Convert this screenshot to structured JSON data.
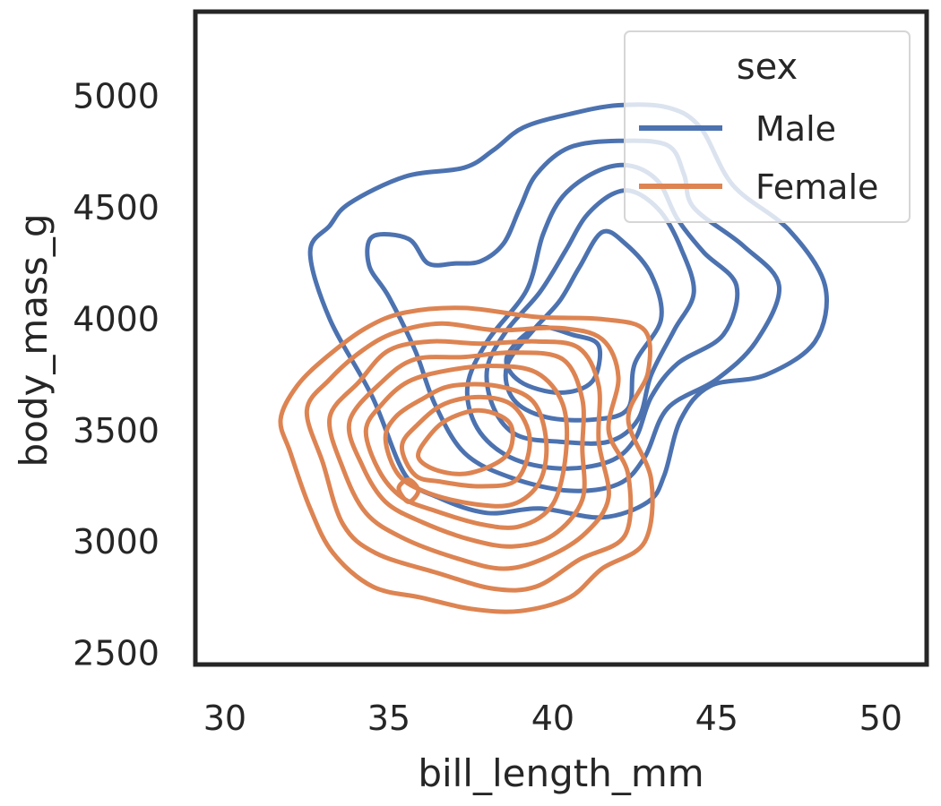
{
  "chart_data": {
    "type": "kde-contour",
    "title": "",
    "xlabel": "bill_length_mm",
    "ylabel": "body_mass_g",
    "xlim": [
      29.1,
      51.4
    ],
    "ylim": [
      2450,
      5380
    ],
    "x_ticks": [
      30,
      35,
      40,
      45,
      50
    ],
    "y_ticks": [
      2500,
      3000,
      3500,
      4000,
      4500,
      5000
    ],
    "grid": false,
    "legend": {
      "title": "sex",
      "placement": "top-right",
      "entries": [
        {
          "label": "Male",
          "color": "#4c72b0"
        },
        {
          "label": "Female",
          "color": "#dd8452"
        }
      ]
    },
    "series": [
      {
        "name": "Male",
        "color": "#4c72b0",
        "levels": [
          [
            [
              33.2,
              4420
            ],
            [
              33.8,
              4520
            ],
            [
              35.5,
              4640
            ],
            [
              37.3,
              4680
            ],
            [
              38.2,
              4760
            ],
            [
              39.1,
              4860
            ],
            [
              40.5,
              4920
            ],
            [
              42.0,
              4960
            ],
            [
              43.5,
              4950
            ],
            [
              44.5,
              4860
            ],
            [
              45.5,
              4600
            ],
            [
              47.2,
              4400
            ],
            [
              48.3,
              4150
            ],
            [
              48.0,
              3900
            ],
            [
              46.5,
              3750
            ],
            [
              44.8,
              3700
            ],
            [
              43.9,
              3550
            ],
            [
              43.4,
              3300
            ],
            [
              42.9,
              3180
            ],
            [
              41.5,
              3110
            ],
            [
              39.6,
              3150
            ],
            [
              38.0,
              3130
            ],
            [
              36.5,
              3200
            ],
            [
              35.5,
              3300
            ],
            [
              34.5,
              3650
            ],
            [
              33.2,
              4000
            ],
            [
              32.6,
              4300
            ]
          ],
          [
            [
              34.5,
              4370
            ],
            [
              35.6,
              4360
            ],
            [
              36.2,
              4250
            ],
            [
              37.0,
              4250
            ],
            [
              37.8,
              4260
            ],
            [
              38.5,
              4340
            ],
            [
              39.0,
              4500
            ],
            [
              39.5,
              4650
            ],
            [
              40.5,
              4770
            ],
            [
              42.0,
              4800
            ],
            [
              43.5,
              4780
            ],
            [
              44.0,
              4650
            ],
            [
              44.3,
              4500
            ],
            [
              45.8,
              4330
            ],
            [
              46.9,
              4150
            ],
            [
              46.2,
              3900
            ],
            [
              45.0,
              3730
            ],
            [
              43.5,
              3600
            ],
            [
              42.8,
              3380
            ],
            [
              42.0,
              3260
            ],
            [
              40.5,
              3230
            ],
            [
              38.7,
              3290
            ],
            [
              37.3,
              3400
            ],
            [
              36.4,
              3620
            ],
            [
              35.8,
              3860
            ],
            [
              35.0,
              4100
            ],
            [
              34.4,
              4240
            ]
          ],
          [
            [
              39.7,
              4380
            ],
            [
              40.3,
              4550
            ],
            [
              41.3,
              4660
            ],
            [
              42.3,
              4690
            ],
            [
              43.2,
              4620
            ],
            [
              43.8,
              4450
            ],
            [
              44.6,
              4300
            ],
            [
              45.6,
              4150
            ],
            [
              45.2,
              3930
            ],
            [
              43.8,
              3800
            ],
            [
              43.0,
              3650
            ],
            [
              42.5,
              3460
            ],
            [
              41.7,
              3360
            ],
            [
              40.2,
              3330
            ],
            [
              38.7,
              3380
            ],
            [
              37.7,
              3510
            ],
            [
              37.4,
              3700
            ],
            [
              38.0,
              3900
            ],
            [
              39.2,
              4130
            ]
          ],
          [
            [
              40.4,
              4310
            ],
            [
              41.0,
              4460
            ],
            [
              41.8,
              4560
            ],
            [
              42.5,
              4570
            ],
            [
              43.3,
              4480
            ],
            [
              43.9,
              4320
            ],
            [
              44.3,
              4120
            ],
            [
              43.7,
              3950
            ],
            [
              43.0,
              3750
            ],
            [
              42.6,
              3550
            ],
            [
              41.7,
              3450
            ],
            [
              40.2,
              3450
            ],
            [
              38.9,
              3480
            ],
            [
              38.2,
              3600
            ],
            [
              38.0,
              3780
            ],
            [
              38.6,
              3950
            ],
            [
              39.6,
              4120
            ]
          ],
          [
            [
              40.8,
              4230
            ],
            [
              41.5,
              4390
            ],
            [
              42.2,
              4340
            ],
            [
              43.0,
              4200
            ],
            [
              43.3,
              4000
            ],
            [
              42.5,
              3800
            ],
            [
              42.3,
              3600
            ],
            [
              41.3,
              3550
            ],
            [
              39.8,
              3560
            ],
            [
              38.8,
              3640
            ],
            [
              38.6,
              3790
            ],
            [
              39.4,
              3950
            ],
            [
              40.2,
              4080
            ]
          ],
          [
            [
              39.5,
              3960
            ],
            [
              40.6,
              3930
            ],
            [
              41.4,
              3880
            ],
            [
              41.2,
              3720
            ],
            [
              40.2,
              3670
            ],
            [
              39.0,
              3720
            ],
            [
              38.6,
              3830
            ]
          ]
        ]
      },
      {
        "name": "Female",
        "color": "#dd8452",
        "levels": [
          [
            [
              31.7,
              3550
            ],
            [
              32.0,
              3400
            ],
            [
              32.6,
              3150
            ],
            [
              33.3,
              2950
            ],
            [
              34.5,
              2800
            ],
            [
              36.0,
              2750
            ],
            [
              37.5,
              2700
            ],
            [
              39.0,
              2690
            ],
            [
              40.5,
              2750
            ],
            [
              41.5,
              2880
            ],
            [
              42.8,
              3000
            ],
            [
              43.0,
              3280
            ],
            [
              42.3,
              3550
            ],
            [
              42.9,
              3760
            ],
            [
              42.8,
              3950
            ],
            [
              41.5,
              4000
            ],
            [
              39.5,
              4010
            ],
            [
              37.3,
              4050
            ],
            [
              35.5,
              4030
            ],
            [
              34.3,
              3960
            ],
            [
              33.1,
              3830
            ],
            [
              32.2,
              3700
            ]
          ],
          [
            [
              32.5,
              3590
            ],
            [
              33.0,
              3350
            ],
            [
              33.6,
              3080
            ],
            [
              34.6,
              2950
            ],
            [
              36.5,
              2860
            ],
            [
              38.2,
              2790
            ],
            [
              39.5,
              2800
            ],
            [
              40.8,
              2920
            ],
            [
              42.2,
              3030
            ],
            [
              42.3,
              3300
            ],
            [
              41.7,
              3500
            ],
            [
              42.0,
              3740
            ],
            [
              41.5,
              3910
            ],
            [
              40.2,
              3960
            ],
            [
              38.3,
              3950
            ],
            [
              36.6,
              3980
            ],
            [
              35.2,
              3940
            ],
            [
              34.2,
              3860
            ],
            [
              33.2,
              3730
            ]
          ],
          [
            [
              33.2,
              3560
            ],
            [
              33.6,
              3330
            ],
            [
              34.3,
              3130
            ],
            [
              35.4,
              3020
            ],
            [
              37.0,
              2930
            ],
            [
              38.5,
              2880
            ],
            [
              39.8,
              2930
            ],
            [
              41.0,
              3040
            ],
            [
              41.7,
              3200
            ],
            [
              41.4,
              3450
            ],
            [
              41.4,
              3700
            ],
            [
              40.8,
              3870
            ],
            [
              39.5,
              3900
            ],
            [
              37.8,
              3890
            ],
            [
              36.3,
              3900
            ],
            [
              35.0,
              3860
            ],
            [
              34.1,
              3720
            ]
          ],
          [
            [
              33.8,
              3540
            ],
            [
              34.2,
              3340
            ],
            [
              34.9,
              3180
            ],
            [
              36.0,
              3090
            ],
            [
              37.5,
              3010
            ],
            [
              38.8,
              2980
            ],
            [
              40.0,
              3030
            ],
            [
              40.9,
              3190
            ],
            [
              40.9,
              3420
            ],
            [
              40.9,
              3640
            ],
            [
              40.3,
              3820
            ],
            [
              38.8,
              3850
            ],
            [
              37.3,
              3830
            ],
            [
              35.8,
              3820
            ],
            [
              34.8,
              3720
            ]
          ],
          [
            [
              34.3,
              3500
            ],
            [
              34.7,
              3320
            ],
            [
              35.4,
              3200
            ],
            [
              36.4,
              3140
            ],
            [
              37.8,
              3080
            ],
            [
              39.0,
              3070
            ],
            [
              40.0,
              3170
            ],
            [
              40.4,
              3400
            ],
            [
              40.3,
              3620
            ],
            [
              39.5,
              3760
            ],
            [
              38.2,
              3790
            ],
            [
              36.8,
              3770
            ],
            [
              35.6,
              3720
            ],
            [
              34.8,
              3620
            ]
          ],
          [
            [
              34.9,
              3460
            ],
            [
              35.3,
              3300
            ],
            [
              36.2,
              3220
            ],
            [
              37.6,
              3170
            ],
            [
              38.8,
              3170
            ],
            [
              39.6,
              3270
            ],
            [
              39.8,
              3450
            ],
            [
              39.4,
              3630
            ],
            [
              38.3,
              3700
            ],
            [
              36.9,
              3700
            ],
            [
              36.0,
              3640
            ],
            [
              35.2,
              3560
            ]
          ],
          [
            [
              35.4,
              3430
            ],
            [
              35.8,
              3300
            ],
            [
              36.6,
              3270
            ],
            [
              37.8,
              3250
            ],
            [
              38.9,
              3280
            ],
            [
              39.3,
              3460
            ],
            [
              38.8,
              3610
            ],
            [
              37.8,
              3650
            ],
            [
              36.7,
              3620
            ],
            [
              35.9,
              3530
            ]
          ],
          [
            [
              35.9,
              3380
            ],
            [
              36.5,
              3320
            ],
            [
              37.5,
              3310
            ],
            [
              38.6,
              3390
            ],
            [
              38.7,
              3530
            ],
            [
              37.8,
              3590
            ],
            [
              36.8,
              3550
            ],
            [
              36.2,
              3470
            ]
          ],
          [
            [
              35.3,
              3240
            ],
            [
              35.6,
              3180
            ],
            [
              35.9,
              3230
            ],
            [
              35.6,
              3280
            ]
          ]
        ]
      }
    ]
  }
}
